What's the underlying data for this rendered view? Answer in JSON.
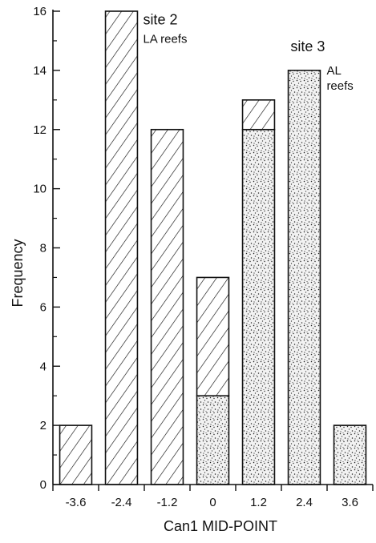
{
  "chart_data": {
    "type": "bar",
    "stacked": true,
    "title": "",
    "xlabel": "Can1 MID-POINT",
    "ylabel": "Frequency",
    "categories": [
      "-3.6",
      "-2.4",
      "-1.2",
      "0",
      "1.2",
      "2.4",
      "3.6"
    ],
    "ylim": [
      0,
      16
    ],
    "yticks": [
      0,
      2,
      4,
      6,
      8,
      10,
      12,
      14,
      16
    ],
    "grid": false,
    "series": [
      {
        "name": "site 2 LA reefs",
        "pattern": "diagonal-hatch",
        "values": [
          2,
          16,
          12,
          4,
          1,
          0,
          0
        ]
      },
      {
        "name": "site 3 AL reefs",
        "pattern": "stipple",
        "values": [
          0,
          0,
          0,
          3,
          12,
          14,
          2
        ]
      }
    ],
    "annotations": [
      {
        "id": "site2",
        "lines": [
          "site 2",
          "LA reefs"
        ],
        "near_category": "-2.4"
      },
      {
        "id": "site3",
        "lines": [
          "site 3",
          "AL",
          "reefs"
        ],
        "near_category": "2.4"
      }
    ]
  },
  "colors": {
    "ink": "#111111",
    "background": "#ffffff"
  }
}
